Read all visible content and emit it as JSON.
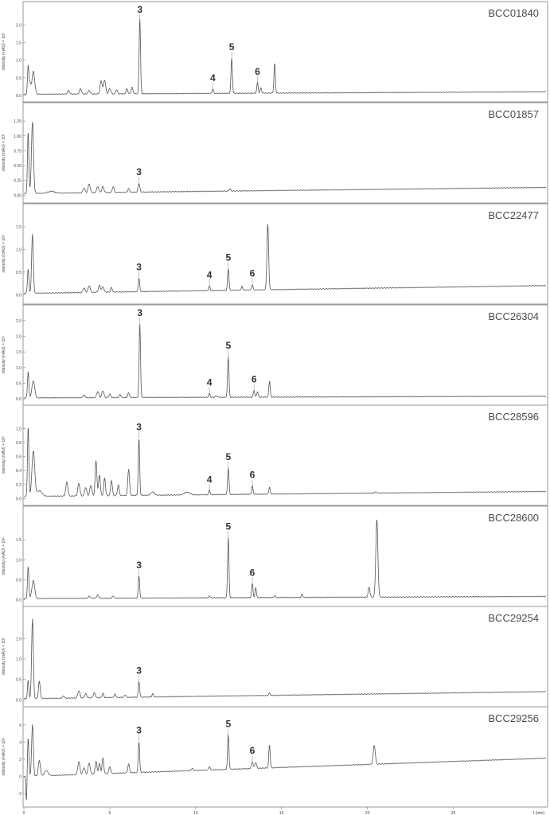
{
  "figure": {
    "x_unit_label": "t (min)",
    "x_ticks": [
      0,
      5,
      10,
      15,
      20,
      25
    ],
    "y_axis_label": "intensity (mAU) × 10³"
  },
  "chart_data": [
    {
      "type": "line",
      "title": "BCC01840",
      "ylabel": "intensity (mAU) × 10³",
      "xlabel": "t (min)",
      "xlim": [
        0,
        30.4
      ],
      "ylim": [
        -0.05,
        2.4
      ],
      "y_ticks": [
        "0.0",
        "0.5",
        "1.0",
        "1.5",
        "2.0"
      ],
      "y_tick_values": [
        0.0,
        0.5,
        1.0,
        1.5,
        2.0
      ],
      "baseline": [
        [
          0,
          0.03
        ],
        [
          30,
          0.1
        ]
      ],
      "peaks": [
        {
          "x": 0.25,
          "h": 0.8,
          "w": 0.04
        },
        {
          "x": 0.35,
          "h": 0.3,
          "w": 0.05
        },
        {
          "x": 0.55,
          "h": 0.65,
          "w": 0.08
        },
        {
          "x": 2.6,
          "h": 0.1,
          "w": 0.06
        },
        {
          "x": 3.3,
          "h": 0.15,
          "w": 0.06
        },
        {
          "x": 3.8,
          "h": 0.1,
          "w": 0.06
        },
        {
          "x": 4.5,
          "h": 0.38,
          "w": 0.06
        },
        {
          "x": 4.7,
          "h": 0.4,
          "w": 0.06
        },
        {
          "x": 5.0,
          "h": 0.15,
          "w": 0.06
        },
        {
          "x": 5.4,
          "h": 0.12,
          "w": 0.05
        },
        {
          "x": 6.0,
          "h": 0.14,
          "w": 0.05
        },
        {
          "x": 6.3,
          "h": 0.18,
          "w": 0.05
        },
        {
          "x": 6.75,
          "h": 2.15,
          "w": 0.04
        },
        {
          "x": 11.0,
          "h": 0.12,
          "w": 0.04
        },
        {
          "x": 12.1,
          "h": 1.0,
          "w": 0.04
        },
        {
          "x": 13.6,
          "h": 0.3,
          "w": 0.04
        },
        {
          "x": 13.8,
          "h": 0.15,
          "w": 0.04
        },
        {
          "x": 14.6,
          "h": 0.85,
          "w": 0.04
        }
      ],
      "annotations": [
        {
          "text": "3",
          "x": 6.75,
          "y": 2.15
        },
        {
          "text": "4",
          "x": 11.0,
          "y": 0.12
        },
        {
          "text": "5",
          "x": 12.1,
          "y": 1.0
        },
        {
          "text": "6",
          "x": 13.6,
          "y": 0.3
        }
      ]
    },
    {
      "type": "line",
      "title": "BCC01857",
      "ylabel": "intensity (mAU) × 10³",
      "xlabel": "t (min)",
      "xlim": [
        0,
        30.4
      ],
      "ylim": [
        -0.05,
        1.4
      ],
      "y_ticks": [
        "0.00",
        "0.25",
        "0.50",
        "0.75",
        "1.00",
        "1.25"
      ],
      "y_tick_values": [
        0.0,
        0.25,
        0.5,
        0.75,
        1.0,
        1.25
      ],
      "baseline": [
        [
          0,
          0.03
        ],
        [
          30,
          0.13
        ]
      ],
      "peaks": [
        {
          "x": 0.25,
          "h": 1.05,
          "w": 0.04
        },
        {
          "x": 0.5,
          "h": 1.2,
          "w": 0.06
        },
        {
          "x": 1.6,
          "h": 0.03,
          "w": 0.2
        },
        {
          "x": 3.5,
          "h": 0.08,
          "w": 0.06
        },
        {
          "x": 3.8,
          "h": 0.15,
          "w": 0.06
        },
        {
          "x": 4.3,
          "h": 0.1,
          "w": 0.06
        },
        {
          "x": 4.6,
          "h": 0.1,
          "w": 0.06
        },
        {
          "x": 5.2,
          "h": 0.1,
          "w": 0.05
        },
        {
          "x": 6.1,
          "h": 0.06,
          "w": 0.05
        },
        {
          "x": 6.7,
          "h": 0.15,
          "w": 0.05
        },
        {
          "x": 12.0,
          "h": 0.04,
          "w": 0.04
        }
      ],
      "annotations": [
        {
          "text": "3",
          "x": 6.7,
          "y": 0.15
        }
      ]
    },
    {
      "type": "line",
      "title": "BCC22477",
      "ylabel": "intensity (mAU) × 10³",
      "xlabel": "t (min)",
      "xlim": [
        0,
        30.4
      ],
      "ylim": [
        -0.1,
        1.8
      ],
      "y_ticks": [
        "0.0",
        "0.5",
        "1.0",
        "1.5"
      ],
      "y_tick_values": [
        0.0,
        0.5,
        1.0,
        1.5
      ],
      "baseline": [
        [
          0,
          0.03
        ],
        [
          30,
          0.2
        ]
      ],
      "peaks": [
        {
          "x": 0.25,
          "h": 0.55,
          "w": 0.04
        },
        {
          "x": 0.5,
          "h": 1.3,
          "w": 0.05
        },
        {
          "x": 3.5,
          "h": 0.1,
          "w": 0.06
        },
        {
          "x": 3.8,
          "h": 0.15,
          "w": 0.06
        },
        {
          "x": 4.4,
          "h": 0.15,
          "w": 0.06
        },
        {
          "x": 4.6,
          "h": 0.12,
          "w": 0.06
        },
        {
          "x": 5.1,
          "h": 0.1,
          "w": 0.05
        },
        {
          "x": 6.7,
          "h": 0.3,
          "w": 0.04
        },
        {
          "x": 10.8,
          "h": 0.1,
          "w": 0.04
        },
        {
          "x": 11.9,
          "h": 0.48,
          "w": 0.04
        },
        {
          "x": 12.7,
          "h": 0.08,
          "w": 0.04
        },
        {
          "x": 13.3,
          "h": 0.12,
          "w": 0.04
        },
        {
          "x": 14.2,
          "h": 1.45,
          "w": 0.05
        }
      ],
      "annotations": [
        {
          "text": "3",
          "x": 6.7,
          "y": 0.3
        },
        {
          "text": "4",
          "x": 10.8,
          "y": 0.1
        },
        {
          "text": "5",
          "x": 11.9,
          "y": 0.48
        },
        {
          "text": "6",
          "x": 13.3,
          "y": 0.12
        }
      ]
    },
    {
      "type": "line",
      "title": "BCC26304",
      "ylabel": "intensity (mAU) × 10³",
      "xlabel": "t (min)",
      "xlim": [
        0,
        30.4
      ],
      "ylim": [
        -0.05,
        2.7
      ],
      "y_ticks": [
        "0.0",
        "0.5",
        "1.0",
        "1.5",
        "2.0",
        "2.5"
      ],
      "y_tick_values": [
        0.0,
        0.5,
        1.0,
        1.5,
        2.0,
        2.5
      ],
      "baseline": [
        [
          0,
          0.03
        ],
        [
          30,
          0.08
        ]
      ],
      "peaks": [
        {
          "x": 0.25,
          "h": 0.85,
          "w": 0.04
        },
        {
          "x": 0.55,
          "h": 0.55,
          "w": 0.08
        },
        {
          "x": 3.5,
          "h": 0.08,
          "w": 0.06
        },
        {
          "x": 4.3,
          "h": 0.2,
          "w": 0.06
        },
        {
          "x": 4.6,
          "h": 0.22,
          "w": 0.06
        },
        {
          "x": 5.0,
          "h": 0.12,
          "w": 0.05
        },
        {
          "x": 5.6,
          "h": 0.1,
          "w": 0.05
        },
        {
          "x": 6.1,
          "h": 0.15,
          "w": 0.05
        },
        {
          "x": 6.75,
          "h": 2.35,
          "w": 0.04
        },
        {
          "x": 10.8,
          "h": 0.12,
          "w": 0.04
        },
        {
          "x": 11.2,
          "h": 0.05,
          "w": 0.04
        },
        {
          "x": 11.9,
          "h": 1.3,
          "w": 0.04
        },
        {
          "x": 13.4,
          "h": 0.22,
          "w": 0.04
        },
        {
          "x": 13.6,
          "h": 0.18,
          "w": 0.04
        },
        {
          "x": 14.3,
          "h": 0.52,
          "w": 0.04
        }
      ],
      "annotations": [
        {
          "text": "3",
          "x": 6.75,
          "y": 2.35
        },
        {
          "text": "4",
          "x": 10.8,
          "y": 0.12
        },
        {
          "text": "5",
          "x": 11.9,
          "y": 1.3
        },
        {
          "text": "6",
          "x": 13.4,
          "y": 0.22
        }
      ]
    },
    {
      "type": "line",
      "title": "BCC28596",
      "ylabel": "intensity (mAU) × 10³",
      "xlabel": "t (min)",
      "xlim": [
        0,
        30.4
      ],
      "ylim": [
        -0.03,
        1.2
      ],
      "y_ticks": [
        "0.0",
        "0.2",
        "0.4",
        "0.6",
        "0.8",
        "1.0"
      ],
      "y_tick_values": [
        0.0,
        0.2,
        0.4,
        0.6,
        0.8,
        1.0
      ],
      "baseline": [
        [
          0,
          0.03
        ],
        [
          30,
          0.1
        ]
      ],
      "peaks": [
        {
          "x": 0.25,
          "h": 1.0,
          "w": 0.04
        },
        {
          "x": 0.55,
          "h": 0.65,
          "w": 0.08
        },
        {
          "x": 0.9,
          "h": 0.08,
          "w": 0.15
        },
        {
          "x": 2.5,
          "h": 0.2,
          "w": 0.06
        },
        {
          "x": 3.2,
          "h": 0.18,
          "w": 0.06
        },
        {
          "x": 3.6,
          "h": 0.12,
          "w": 0.06
        },
        {
          "x": 3.9,
          "h": 0.15,
          "w": 0.06
        },
        {
          "x": 4.2,
          "h": 0.5,
          "w": 0.05
        },
        {
          "x": 4.4,
          "h": 0.3,
          "w": 0.05
        },
        {
          "x": 4.7,
          "h": 0.25,
          "w": 0.05
        },
        {
          "x": 5.1,
          "h": 0.22,
          "w": 0.05
        },
        {
          "x": 5.5,
          "h": 0.15,
          "w": 0.05
        },
        {
          "x": 6.1,
          "h": 0.38,
          "w": 0.05
        },
        {
          "x": 6.7,
          "h": 0.82,
          "w": 0.04
        },
        {
          "x": 7.5,
          "h": 0.05,
          "w": 0.1
        },
        {
          "x": 9.5,
          "h": 0.04,
          "w": 0.15
        },
        {
          "x": 10.8,
          "h": 0.06,
          "w": 0.04
        },
        {
          "x": 11.9,
          "h": 0.38,
          "w": 0.04
        },
        {
          "x": 13.3,
          "h": 0.12,
          "w": 0.04
        },
        {
          "x": 14.3,
          "h": 0.1,
          "w": 0.04
        },
        {
          "x": 20.5,
          "h": 0.02,
          "w": 0.05
        }
      ],
      "annotations": [
        {
          "text": "3",
          "x": 6.7,
          "y": 0.82
        },
        {
          "text": "4",
          "x": 10.8,
          "y": 0.06
        },
        {
          "text": "5",
          "x": 11.9,
          "y": 0.38
        },
        {
          "text": "6",
          "x": 13.3,
          "y": 0.12
        }
      ]
    },
    {
      "type": "line",
      "title": "BCC28600",
      "ylabel": "intensity (mAU) × 10³",
      "xlabel": "t (min)",
      "xlim": [
        0,
        30.4
      ],
      "ylim": [
        -0.05,
        2.1
      ],
      "y_ticks": [
        "0.0",
        "0.5",
        "1.0",
        "1.5"
      ],
      "y_tick_values": [
        0.0,
        0.5,
        1.0,
        1.5
      ],
      "baseline": [
        [
          0,
          0.03
        ],
        [
          30,
          0.08
        ]
      ],
      "peaks": [
        {
          "x": 0.25,
          "h": 0.8,
          "w": 0.04
        },
        {
          "x": 0.55,
          "h": 0.45,
          "w": 0.08
        },
        {
          "x": 3.8,
          "h": 0.05,
          "w": 0.06
        },
        {
          "x": 4.3,
          "h": 0.08,
          "w": 0.06
        },
        {
          "x": 5.2,
          "h": 0.05,
          "w": 0.05
        },
        {
          "x": 6.7,
          "h": 0.55,
          "w": 0.04
        },
        {
          "x": 10.8,
          "h": 0.05,
          "w": 0.04
        },
        {
          "x": 11.9,
          "h": 1.5,
          "w": 0.04
        },
        {
          "x": 13.3,
          "h": 0.35,
          "w": 0.04
        },
        {
          "x": 13.5,
          "h": 0.25,
          "w": 0.04
        },
        {
          "x": 14.6,
          "h": 0.05,
          "w": 0.04
        },
        {
          "x": 16.2,
          "h": 0.08,
          "w": 0.04
        },
        {
          "x": 20.1,
          "h": 0.25,
          "w": 0.05
        },
        {
          "x": 20.55,
          "h": 1.95,
          "w": 0.06
        }
      ],
      "annotations": [
        {
          "text": "3",
          "x": 6.7,
          "y": 0.55
        },
        {
          "text": "5",
          "x": 11.9,
          "y": 1.5
        },
        {
          "text": "6",
          "x": 13.3,
          "y": 0.35
        }
      ]
    },
    {
      "type": "line",
      "title": "BCC29254",
      "ylabel": "intensity (mAU) × 10³",
      "xlabel": "t (min)",
      "xlim": [
        0,
        30.4
      ],
      "ylim": [
        -0.05,
        2.05
      ],
      "y_ticks": [
        "0.0",
        "0.5",
        "1.0",
        "1.5"
      ],
      "y_tick_values": [
        0.0,
        0.5,
        1.0,
        1.5
      ],
      "baseline": [
        [
          0,
          0.03
        ],
        [
          30,
          0.2
        ]
      ],
      "peaks": [
        {
          "x": 0.25,
          "h": 0.45,
          "w": 0.04
        },
        {
          "x": 0.5,
          "h": 1.95,
          "w": 0.05
        },
        {
          "x": 0.9,
          "h": 0.42,
          "w": 0.05
        },
        {
          "x": 2.3,
          "h": 0.05,
          "w": 0.06
        },
        {
          "x": 3.2,
          "h": 0.18,
          "w": 0.06
        },
        {
          "x": 3.6,
          "h": 0.1,
          "w": 0.06
        },
        {
          "x": 4.1,
          "h": 0.12,
          "w": 0.06
        },
        {
          "x": 4.6,
          "h": 0.1,
          "w": 0.05
        },
        {
          "x": 5.3,
          "h": 0.08,
          "w": 0.05
        },
        {
          "x": 5.9,
          "h": 0.06,
          "w": 0.05
        },
        {
          "x": 6.7,
          "h": 0.38,
          "w": 0.04
        },
        {
          "x": 7.5,
          "h": 0.08,
          "w": 0.04
        },
        {
          "x": 14.3,
          "h": 0.06,
          "w": 0.04
        }
      ],
      "annotations": [
        {
          "text": "3",
          "x": 6.7,
          "y": 0.38
        }
      ]
    },
    {
      "type": "line",
      "title": "BCC29256",
      "ylabel": "intensity (mAU) × 10³",
      "xlabel": "t (min)",
      "xlim": [
        0,
        30.4
      ],
      "ylim": [
        -3.0,
        7.0
      ],
      "y_ticks": [
        "-2",
        "0",
        "2",
        "4",
        "6"
      ],
      "y_tick_values": [
        -2,
        0,
        2,
        4,
        6
      ],
      "baseline": [
        [
          0,
          0.0
        ],
        [
          30,
          2.1
        ]
      ],
      "peaks": [
        {
          "x": 0.15,
          "h": -3.0,
          "w": 0.03
        },
        {
          "x": 0.25,
          "h": 4.5,
          "w": 0.04
        },
        {
          "x": 0.5,
          "h": 6.0,
          "w": 0.05
        },
        {
          "x": 0.9,
          "h": 1.8,
          "w": 0.06
        },
        {
          "x": 1.3,
          "h": 0.6,
          "w": 0.1
        },
        {
          "x": 3.2,
          "h": 1.5,
          "w": 0.06
        },
        {
          "x": 3.5,
          "h": 0.8,
          "w": 0.06
        },
        {
          "x": 3.8,
          "h": 1.3,
          "w": 0.06
        },
        {
          "x": 4.2,
          "h": 1.5,
          "w": 0.05
        },
        {
          "x": 4.4,
          "h": 1.2,
          "w": 0.05
        },
        {
          "x": 4.6,
          "h": 1.8,
          "w": 0.05
        },
        {
          "x": 5.0,
          "h": 0.8,
          "w": 0.05
        },
        {
          "x": 6.1,
          "h": 1.0,
          "w": 0.05
        },
        {
          "x": 6.7,
          "h": 3.6,
          "w": 0.04
        },
        {
          "x": 9.8,
          "h": 0.25,
          "w": 0.05
        },
        {
          "x": 10.8,
          "h": 0.4,
          "w": 0.04
        },
        {
          "x": 11.9,
          "h": 4.0,
          "w": 0.04
        },
        {
          "x": 13.3,
          "h": 0.8,
          "w": 0.05
        },
        {
          "x": 13.5,
          "h": 0.7,
          "w": 0.05
        },
        {
          "x": 14.3,
          "h": 2.7,
          "w": 0.04
        },
        {
          "x": 20.4,
          "h": 2.2,
          "w": 0.06
        }
      ],
      "annotations": [
        {
          "text": "3",
          "x": 6.7,
          "y": 3.6
        },
        {
          "text": "5",
          "x": 11.9,
          "y": 4.0
        },
        {
          "text": "6",
          "x": 13.3,
          "y": 0.8
        }
      ]
    }
  ]
}
